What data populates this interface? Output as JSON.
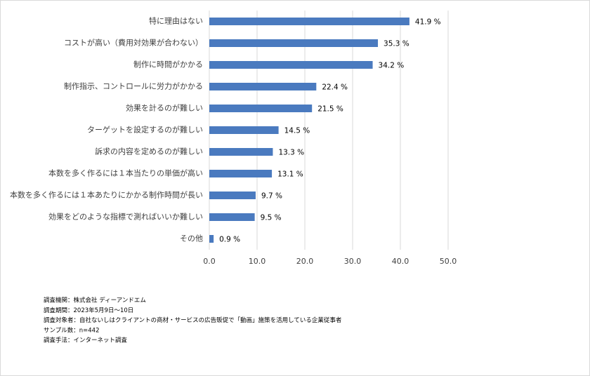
{
  "chart_data": {
    "type": "bar",
    "orientation": "horizontal",
    "categories": [
      "特に理由はない",
      "コストが高い（費用対効果が合わない）",
      "制作に時間がかかる",
      "制作指示、コントロールに労力がかかる",
      "効果を計るのが難しい",
      "ターゲットを設定するのが難しい",
      "訴求の内容を定めるのが難しい",
      "本数を多く作るには１本当たりの単価が高い",
      "本数を多く作るには１本あたりにかかる制作時間が長い",
      "効果をどのような指標で測ればいいか難しい",
      "その他"
    ],
    "values": [
      41.9,
      35.3,
      34.2,
      22.4,
      21.5,
      14.5,
      13.3,
      13.1,
      9.7,
      9.5,
      0.9
    ],
    "value_labels": [
      "41.9 %",
      "35.3 %",
      "34.2 %",
      "22.4 %",
      "21.5 %",
      "14.5 %",
      "13.3 %",
      "13.1 %",
      "9.7 %",
      "9.5 %",
      "0.9 %"
    ],
    "color": "#4a7abf",
    "xlim": [
      0,
      50
    ],
    "xticks": [
      {
        "value": 0,
        "label": "0.0"
      },
      {
        "value": 10,
        "label": "10.0"
      },
      {
        "value": 20,
        "label": "20.0"
      },
      {
        "value": 30,
        "label": "30.0"
      },
      {
        "value": 40,
        "label": "40.0"
      },
      {
        "value": 50,
        "label": "50.0"
      }
    ],
    "grid": true,
    "notes": [
      "調査機関：株式会社 ディーアンドエム",
      "調査期間：2023年5月9日～10日",
      "調査対象者：自社ないしはクライアントの商材・サービスの広告販促で「動画」施策を活用している企業従事者",
      "サンプル数：n=442",
      "調査手法：インターネット調査"
    ]
  }
}
